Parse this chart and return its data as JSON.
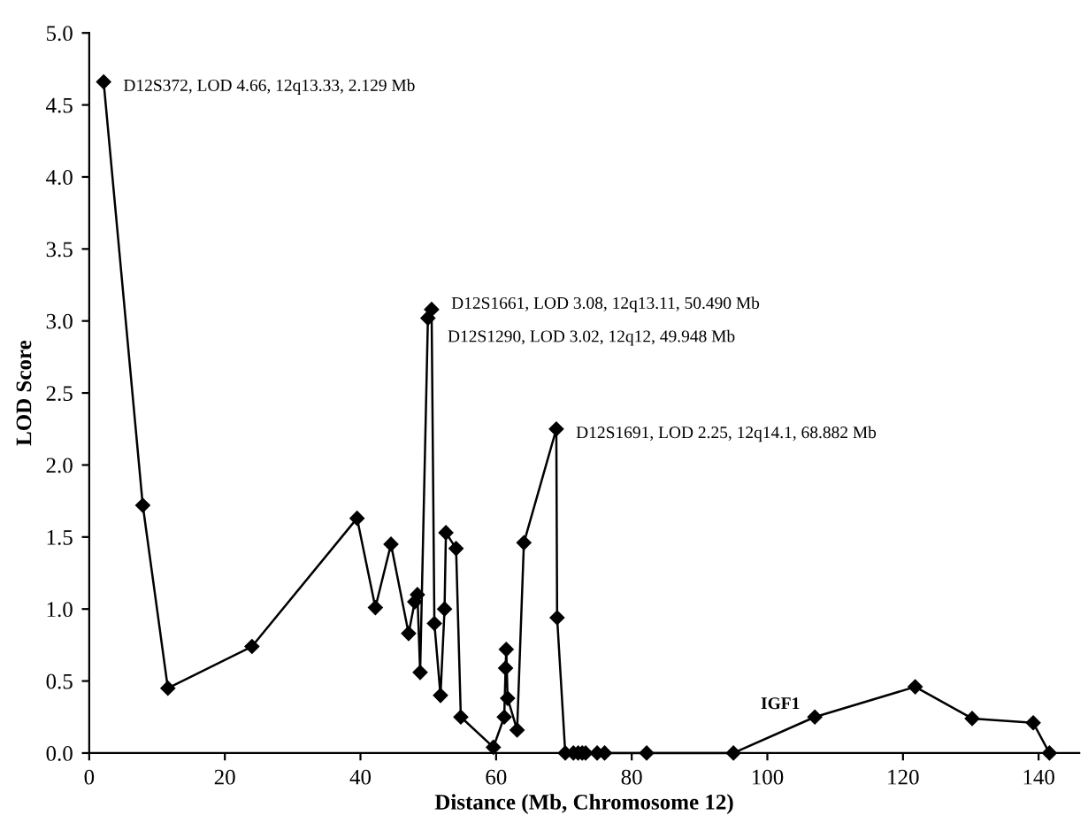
{
  "chart_data": {
    "type": "line",
    "xlabel": "Distance (Mb, Chromosome 12)",
    "ylabel": "LOD Score",
    "x": [
      2.129,
      7.9,
      11.6,
      24.0,
      39.5,
      42.2,
      44.5,
      47.1,
      48.0,
      48.4,
      48.8,
      49.948,
      50.49,
      50.9,
      51.8,
      52.4,
      52.6,
      54.1,
      54.8,
      59.6,
      61.2,
      61.4,
      61.5,
      61.7,
      63.1,
      64.1,
      68.882,
      69.0,
      70.2,
      71.4,
      72.1,
      72.7,
      73.2,
      74.9,
      76.0,
      82.2,
      95.0,
      107.0,
      121.8,
      130.2,
      139.2,
      141.6
    ],
    "series": [
      {
        "color": "#000000",
        "values": [
          4.66,
          1.72,
          0.45,
          0.74,
          1.63,
          1.01,
          1.45,
          0.83,
          1.05,
          1.1,
          0.56,
          3.02,
          3.08,
          0.9,
          0.4,
          1.0,
          1.53,
          1.42,
          0.25,
          0.04,
          0.25,
          0.59,
          0.72,
          0.38,
          0.16,
          1.46,
          2.25,
          0.94,
          0,
          0,
          0,
          0,
          0,
          0,
          0,
          0,
          0,
          0.25,
          0.46,
          0.24,
          0.21,
          0
        ]
      }
    ],
    "marker": "diamond",
    "line_style": "solid",
    "xlim": [
      0,
      146
    ],
    "xticks": [
      0,
      20,
      40,
      60,
      80,
      100,
      120,
      140
    ],
    "ylim": [
      0,
      5
    ],
    "yticks": [
      {
        "value": 0,
        "label": "0.0"
      },
      {
        "value": 0.5,
        "label": "0.5"
      },
      {
        "value": 1,
        "label": "1.0"
      },
      {
        "value": 1.5,
        "label": "1.5"
      },
      {
        "value": 2,
        "label": "2.0"
      },
      {
        "value": 2.5,
        "label": "2.5"
      },
      {
        "value": 3,
        "label": "3.0"
      },
      {
        "value": 3.5,
        "label": "3.5"
      },
      {
        "value": 4,
        "label": "4.0"
      },
      {
        "value": 4.5,
        "label": "4.5"
      },
      {
        "value": 5,
        "label": "5.0"
      }
    ],
    "grid": false,
    "legend": false,
    "annotations": [
      {
        "text": "D12S372, LOD 4.66, 12q13.33, 2.129 Mb",
        "x": 2.129,
        "y": 4.66
      },
      {
        "text": "D12S1661, LOD 3.08, 12q13.11, 50.490 Mb",
        "x": 50.49,
        "y": 3.08
      },
      {
        "text": "D12S1290, LOD 3.02, 12q12, 49.948 Mb",
        "x": 49.948,
        "y": 3.02
      },
      {
        "text": "D12S1691, LOD 2.25, 12q14.1, 68.882 Mb",
        "x": 68.882,
        "y": 2.25
      },
      {
        "text": "IGF1",
        "x": 107.0,
        "y": 0.25
      }
    ]
  }
}
